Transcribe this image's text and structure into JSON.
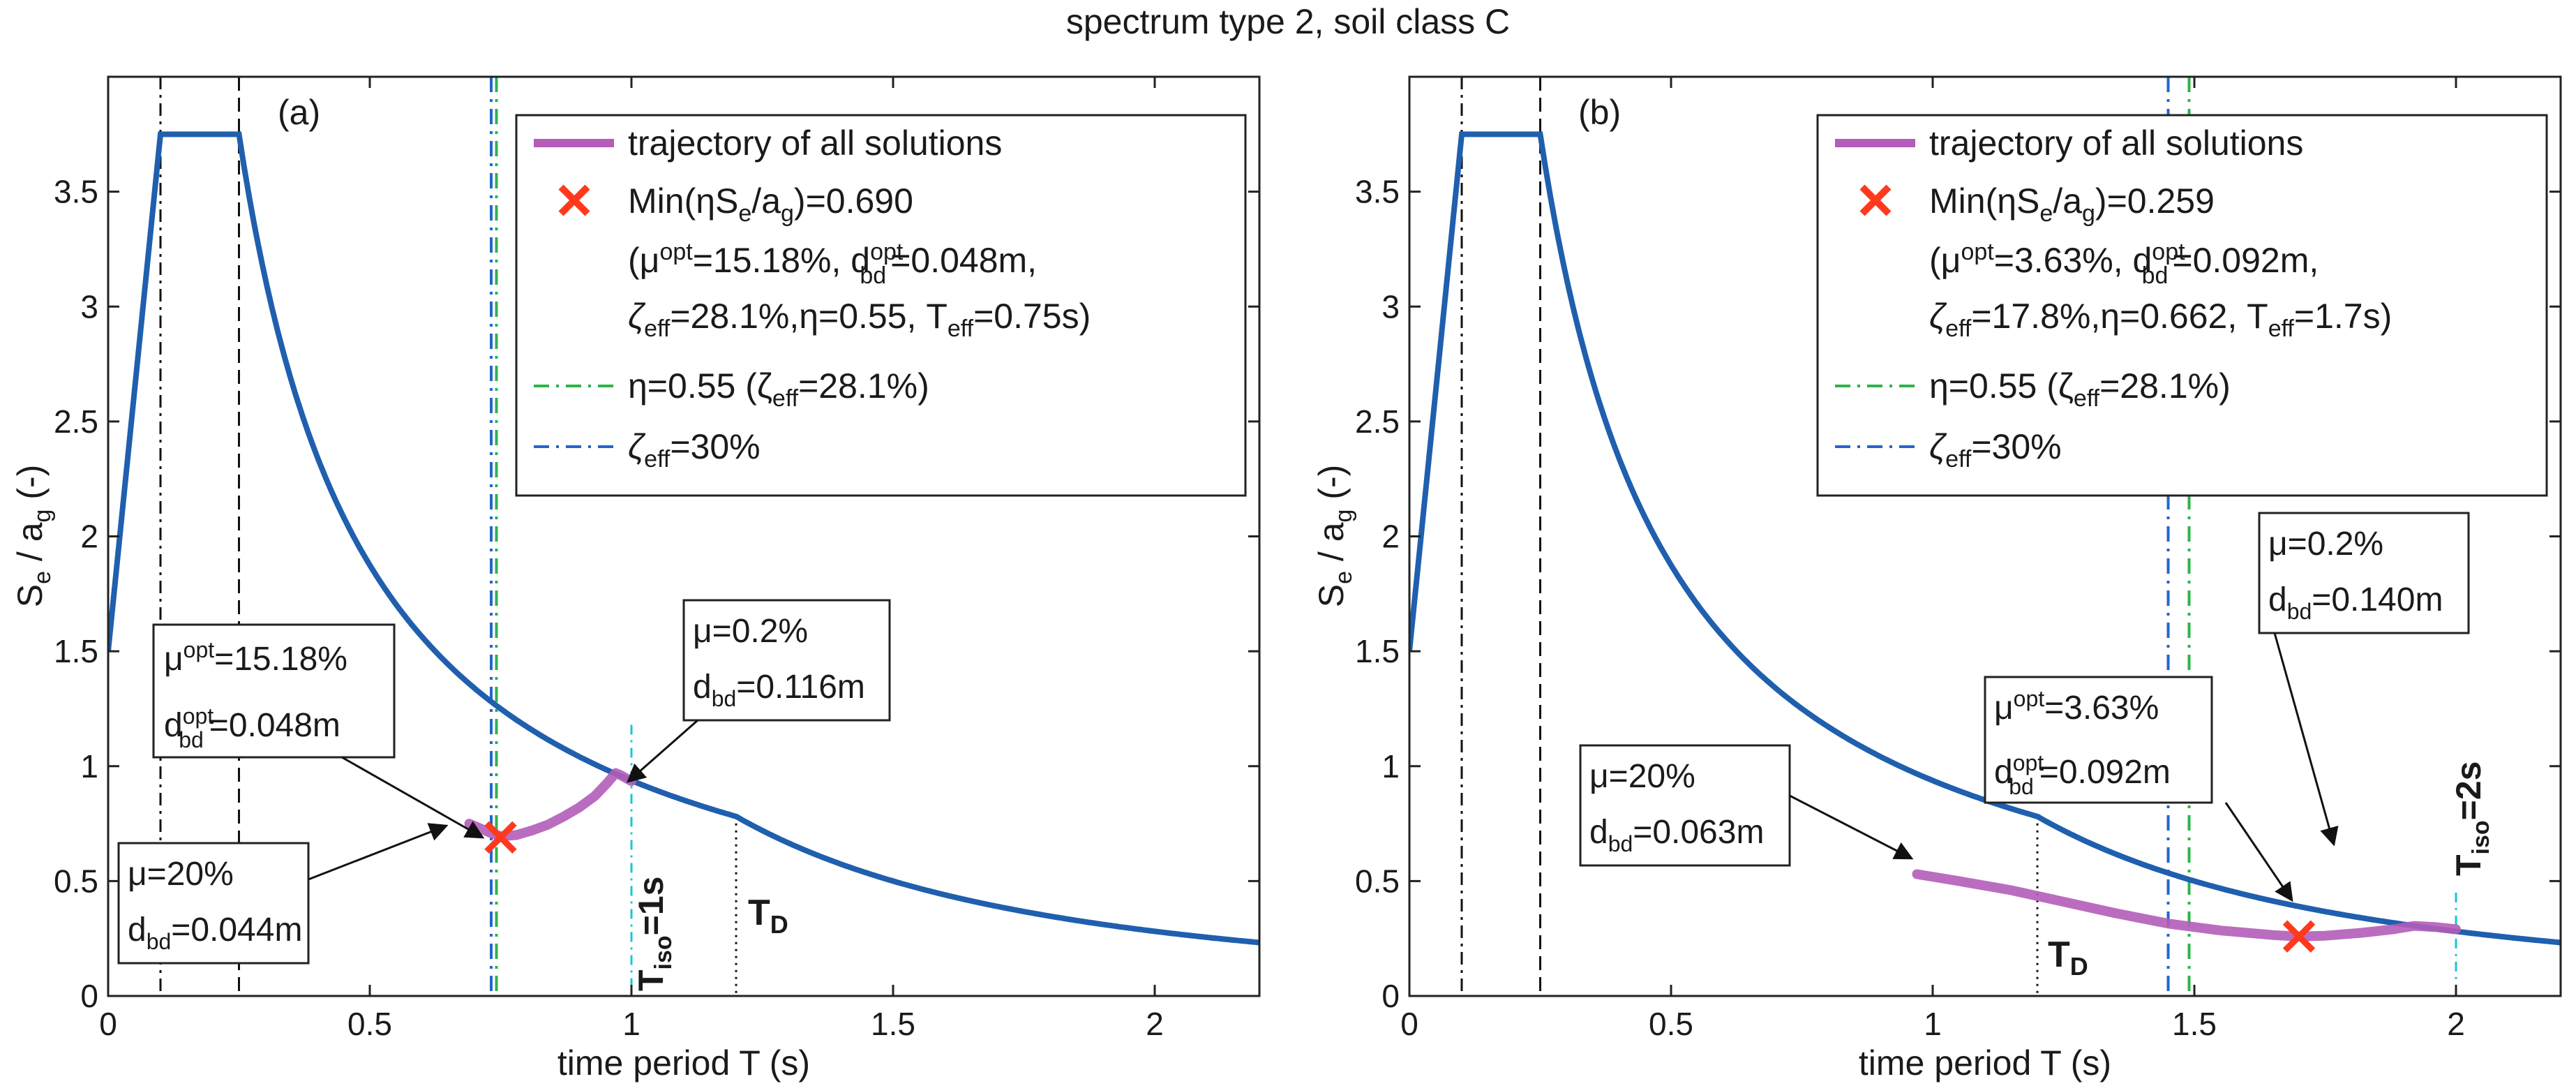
{
  "figure_title": "spectrum type 2, soil class C",
  "colors": {
    "spectrum": "#1f5fae",
    "trajectory": "#b25db8",
    "optimum_marker": "#ff3a1c",
    "eta_line": "#2db34a",
    "zeta_line": "#2266cc",
    "tiso_line": "#19c6d6",
    "guide_line": "#111111"
  },
  "chart_data": [
    {
      "panel_label": "(a)",
      "type": "line",
      "xlabel": "time period T (s)",
      "ylabel_parts": [
        "S",
        "e",
        " / a",
        "g",
        "  (-)"
      ],
      "xlim": [
        0,
        2.2
      ],
      "ylim": [
        0,
        4
      ],
      "xticks": [
        0,
        0.5,
        1,
        1.5,
        2
      ],
      "xtick_labels": [
        "0",
        "0.5",
        "1",
        "1.5",
        "2"
      ],
      "yticks": [
        0,
        0.5,
        1,
        1.5,
        2,
        2.5,
        3,
        3.5
      ],
      "ytick_labels": [
        "0",
        "0.5",
        "1",
        "1.5",
        "2",
        "2.5",
        "3",
        "3.5"
      ],
      "spectrum": {
        "ag_units_note": "S_e/a_g",
        "S": 1.5,
        "TB": 0.1,
        "TC": 0.25,
        "TD": 1.2,
        "plateau": 3.75,
        "start": 1.5
      },
      "guides": {
        "TB": 0.1,
        "TC": 0.25,
        "TD": 1.2,
        "eta_line_T": 0.742,
        "zeta_line_T": 0.732,
        "Tiso": 1.0,
        "Tiso_top": 1.18
      },
      "trajectory": {
        "x": [
          0.69,
          0.71,
          0.73,
          0.75,
          0.78,
          0.81,
          0.84,
          0.87,
          0.9,
          0.93,
          0.955,
          0.97,
          0.98,
          1.0
        ],
        "y": [
          0.75,
          0.73,
          0.71,
          0.695,
          0.7,
          0.72,
          0.745,
          0.78,
          0.82,
          0.87,
          0.93,
          0.97,
          0.96,
          0.935
        ]
      },
      "optimum": {
        "T": 0.75,
        "value": 0.69
      },
      "legend": {
        "trajectory_label": "trajectory of all solutions",
        "min_label": "Min(ηS",
        "min_sub_e": "e",
        "min_mid": "/a",
        "min_sub_g": "g",
        "min_value": ")=0.690",
        "mu_label": "(μ",
        "mu_sup": "opt",
        "mu_value": "=15.18%, d",
        "d_sup": "opt",
        "d_sub": "bd",
        "d_value": "=0.048m,",
        "zeta_sym": "ζ",
        "zeta_sub": "eff",
        "zeta_value": "=28.1%,η=0.55, T",
        "teff_sub": "eff",
        "teff_value": "=0.75s)",
        "eta_label": "η=0.55 (ζ",
        "eta_sub": "eff",
        "eta_value": "=28.1%)",
        "zeta30_sym": "ζ",
        "zeta30_sub": "eff",
        "zeta30_value": "=30%"
      },
      "annotations": {
        "opt_mu": "μ",
        "opt_mu_sup": "opt",
        "opt_mu_value": "=15.18%",
        "opt_d": "d",
        "opt_d_sup": "opt",
        "opt_d_sub": "bd",
        "opt_d_value": "=0.048m",
        "low_mu": "μ=0.2%",
        "low_d": "d",
        "low_d_sub": "bd",
        "low_d_value": "=0.116m",
        "high_mu": "μ=20%",
        "high_d": "d",
        "high_d_sub": "bd",
        "high_d_value": "=0.044m",
        "tiso": "T",
        "tiso_sub": "iso",
        "tiso_value": "=1s",
        "td": "T",
        "td_sub": "D"
      }
    },
    {
      "panel_label": "(b)",
      "type": "line",
      "xlabel": "time period T (s)",
      "ylabel_parts": [
        "S",
        "e",
        " / a",
        "g",
        "  (-)"
      ],
      "xlim": [
        0,
        2.2
      ],
      "ylim": [
        0,
        4
      ],
      "xticks": [
        0,
        0.5,
        1,
        1.5,
        2
      ],
      "xtick_labels": [
        "0",
        "0.5",
        "1",
        "1.5",
        "2"
      ],
      "yticks": [
        0,
        0.5,
        1,
        1.5,
        2,
        2.5,
        3,
        3.5
      ],
      "ytick_labels": [
        "0",
        "0.5",
        "1",
        "1.5",
        "2",
        "2.5",
        "3",
        "3.5"
      ],
      "spectrum": {
        "ag_units_note": "S_e/a_g",
        "S": 1.5,
        "TB": 0.1,
        "TC": 0.25,
        "TD": 1.2,
        "plateau": 3.75,
        "start": 1.5
      },
      "guides": {
        "TB": 0.1,
        "TC": 0.25,
        "TD": 1.2,
        "eta_line_T": 1.49,
        "zeta_line_T": 1.45,
        "Tiso": 2.0,
        "Tiso_top": 0.45
      },
      "trajectory": {
        "x": [
          0.97,
          1.05,
          1.15,
          1.25,
          1.35,
          1.45,
          1.55,
          1.65,
          1.7,
          1.75,
          1.82,
          1.88,
          1.92,
          1.96,
          2.0
        ],
        "y": [
          0.53,
          0.5,
          0.46,
          0.41,
          0.36,
          0.315,
          0.285,
          0.265,
          0.259,
          0.262,
          0.275,
          0.29,
          0.305,
          0.3,
          0.29
        ]
      },
      "optimum": {
        "T": 1.7,
        "value": 0.259
      },
      "legend": {
        "trajectory_label": "trajectory of all solutions",
        "min_label": "Min(ηS",
        "min_sub_e": "e",
        "min_mid": "/a",
        "min_sub_g": "g",
        "min_value": ")=0.259",
        "mu_label": "(μ",
        "mu_sup": "opt",
        "mu_value": "=3.63%, d",
        "d_sup": "opt",
        "d_sub": "bd",
        "d_value": "=0.092m,",
        "zeta_sym": "ζ",
        "zeta_sub": "eff",
        "zeta_value": "=17.8%,η=0.662, T",
        "teff_sub": "eff",
        "teff_value": "=1.7s)",
        "eta_label": "η=0.55 (ζ",
        "eta_sub": "eff",
        "eta_value": "=28.1%)",
        "zeta30_sym": "ζ",
        "zeta30_sub": "eff",
        "zeta30_value": "=30%"
      },
      "annotations": {
        "opt_mu": "μ",
        "opt_mu_sup": "opt",
        "opt_mu_value": "=3.63%",
        "opt_d": "d",
        "opt_d_sup": "opt",
        "opt_d_sub": "bd",
        "opt_d_value": "=0.092m",
        "low_mu": "μ=0.2%",
        "low_d": "d",
        "low_d_sub": "bd",
        "low_d_value": "=0.140m",
        "high_mu": "μ=20%",
        "high_d": "d",
        "high_d_sub": "bd",
        "high_d_value": "=0.063m",
        "tiso": "T",
        "tiso_sub": "iso",
        "tiso_value": "=2s",
        "td": "T",
        "td_sub": "D"
      }
    }
  ]
}
